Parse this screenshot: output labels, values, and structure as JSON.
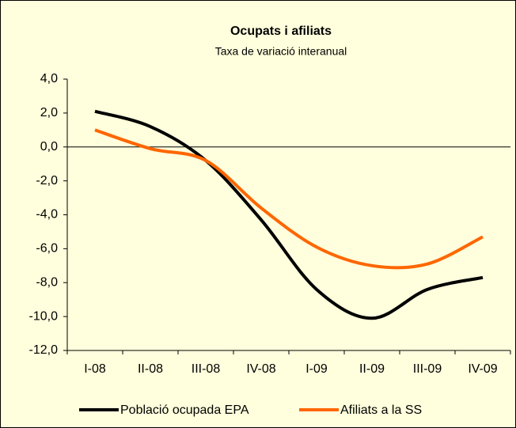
{
  "chart_data": {
    "type": "line",
    "title": "Ocupats i afiliats",
    "subtitle": "Taxa de variació interanual",
    "categories": [
      "I-08",
      "II-08",
      "III-08",
      "IV-08",
      "I-09",
      "II-09",
      "III-09",
      "IV-09"
    ],
    "series": [
      {
        "name": "Població ocupada EPA",
        "color": "#000000",
        "values": [
          2.1,
          1.2,
          -0.8,
          -4.3,
          -8.4,
          -10.1,
          -8.4,
          -7.7
        ]
      },
      {
        "name": "Afiliats a la SS",
        "color": "#ff6600",
        "values": [
          1.0,
          -0.1,
          -0.8,
          -3.6,
          -5.9,
          -7.0,
          -6.9,
          -5.3
        ]
      }
    ],
    "ylim": [
      -12,
      4
    ],
    "yticks": [
      {
        "value": -12,
        "label": "-12,0"
      },
      {
        "value": -10,
        "label": "-10,0"
      },
      {
        "value": -8,
        "label": "-8,0"
      },
      {
        "value": -6,
        "label": "-6,0"
      },
      {
        "value": -4,
        "label": "-4,0"
      },
      {
        "value": -2,
        "label": "-2,0"
      },
      {
        "value": 0,
        "label": "0,0"
      },
      {
        "value": 2,
        "label": "2,0"
      },
      {
        "value": 4,
        "label": "4,0"
      }
    ],
    "smooth": true,
    "grid": false,
    "legend": "bottom"
  }
}
